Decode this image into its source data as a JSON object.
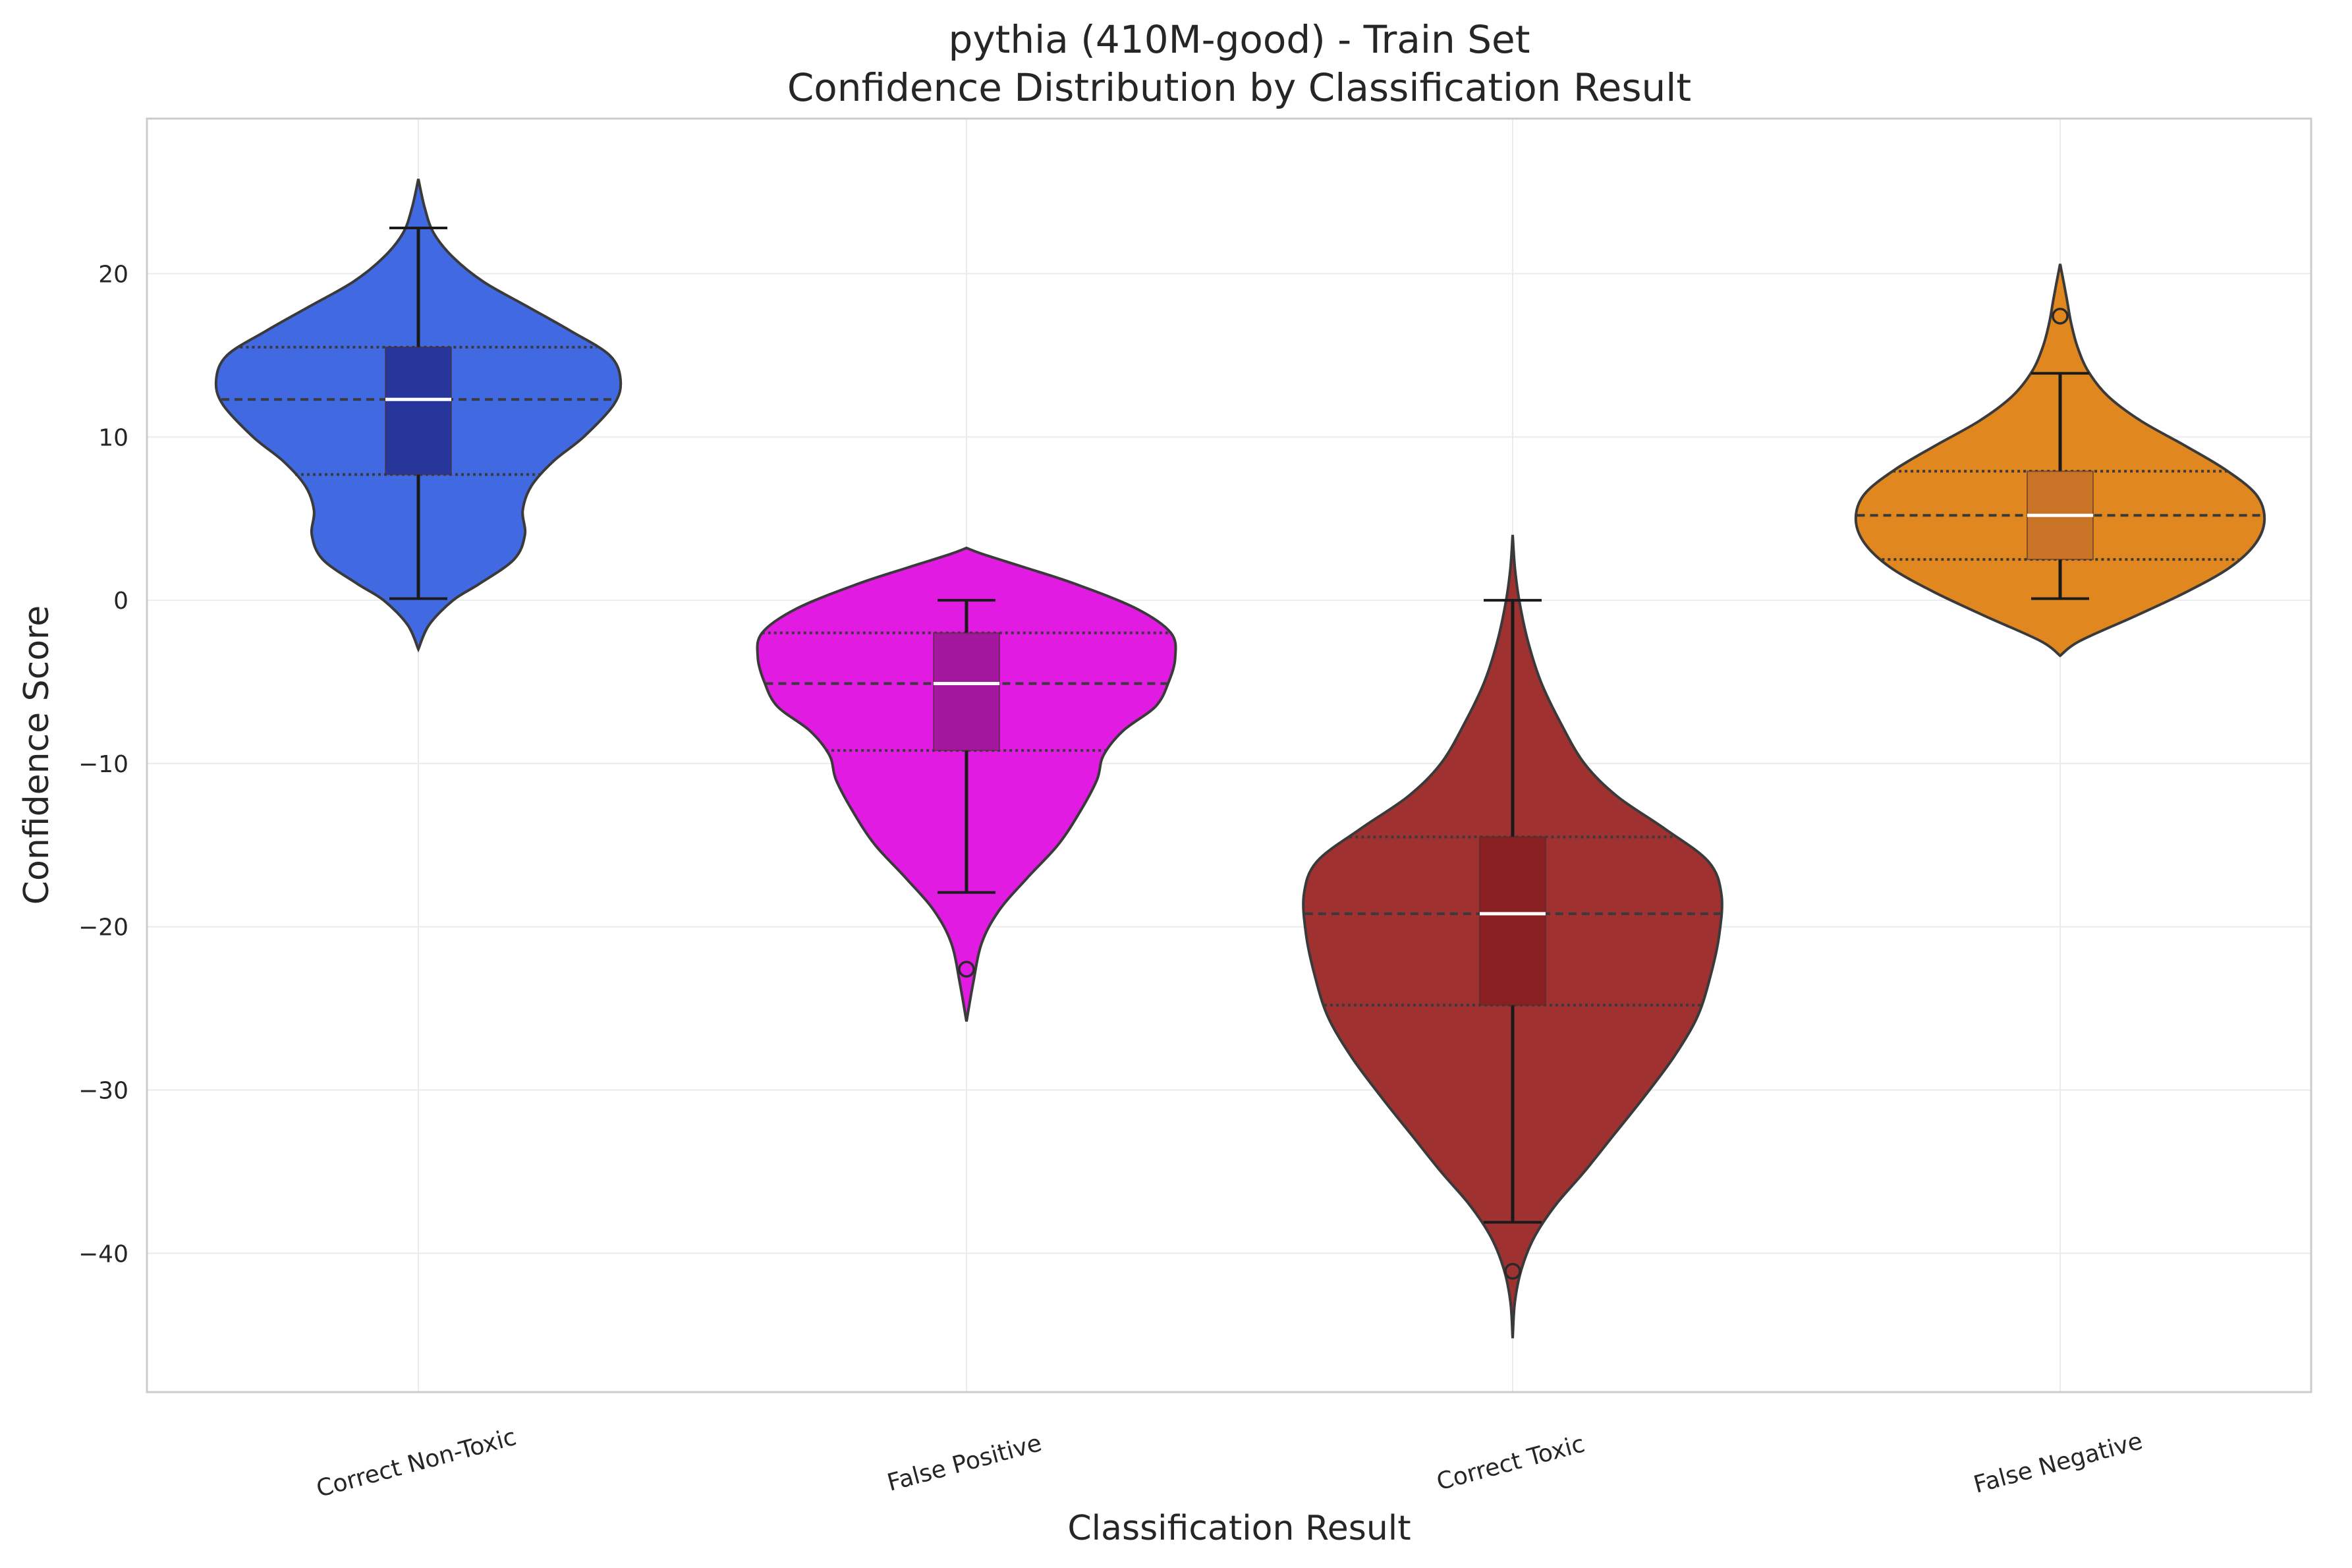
{
  "chart_data": {
    "type": "violin",
    "title": "pythia (410M-good) - Train Set",
    "subtitle": "Confidence Distribution by Classification Result",
    "xlabel": "Classification Result",
    "ylabel": "Confidence Score",
    "ylim": [
      -48.5,
      29.5
    ],
    "yticks": [
      20,
      10,
      0,
      -10,
      -20,
      -30,
      -40
    ],
    "grid": true,
    "categories": [
      "Correct Non-Toxic",
      "False Positive",
      "Correct Toxic",
      "False Negative"
    ],
    "series": [
      {
        "category": "Correct Non-Toxic",
        "color": "#4169e1",
        "box_color": "#28359a",
        "q1": 7.7,
        "median": 12.3,
        "q3": 15.5,
        "whisker_low": 0.1,
        "whisker_high": 22.8,
        "outliers": [],
        "density": [
          [
            -3.0,
            0.0
          ],
          [
            -1.5,
            0.05
          ],
          [
            0.0,
            0.16
          ],
          [
            1.0,
            0.28
          ],
          [
            2.5,
            0.44
          ],
          [
            4.0,
            0.49
          ],
          [
            5.5,
            0.48
          ],
          [
            7.0,
            0.52
          ],
          [
            8.5,
            0.62
          ],
          [
            10.0,
            0.76
          ],
          [
            12.0,
            0.9
          ],
          [
            13.5,
            0.93
          ],
          [
            15.0,
            0.88
          ],
          [
            16.5,
            0.7
          ],
          [
            18.0,
            0.5
          ],
          [
            19.5,
            0.3
          ],
          [
            21.0,
            0.16
          ],
          [
            22.5,
            0.07
          ],
          [
            24.0,
            0.03
          ],
          [
            25.8,
            0.0
          ]
        ]
      },
      {
        "category": "False Positive",
        "color": "#e11be1",
        "box_color": "#a3179f",
        "q1": -9.2,
        "median": -5.1,
        "q3": -2.0,
        "whisker_low": -17.9,
        "whisker_high": 0.0,
        "outliers": [
          -22.6
        ],
        "density": [
          [
            -25.8,
            0.0
          ],
          [
            -23.5,
            0.03
          ],
          [
            -21.0,
            0.07
          ],
          [
            -19.0,
            0.15
          ],
          [
            -17.0,
            0.28
          ],
          [
            -15.0,
            0.42
          ],
          [
            -13.0,
            0.52
          ],
          [
            -11.0,
            0.6
          ],
          [
            -9.5,
            0.63
          ],
          [
            -8.0,
            0.72
          ],
          [
            -6.5,
            0.87
          ],
          [
            -5.0,
            0.93
          ],
          [
            -3.5,
            0.96
          ],
          [
            -2.0,
            0.94
          ],
          [
            -0.5,
            0.78
          ],
          [
            1.0,
            0.5
          ],
          [
            2.0,
            0.27
          ],
          [
            2.8,
            0.08
          ],
          [
            3.2,
            0.0
          ]
        ]
      },
      {
        "category": "Correct Toxic",
        "color": "#a03131",
        "box_color": "#8a1f21",
        "q1": -24.8,
        "median": -19.2,
        "q3": -14.5,
        "whisker_low": -38.1,
        "whisker_high": 0.0,
        "outliers": [
          -41.1
        ],
        "density": [
          [
            -45.2,
            0.0
          ],
          [
            -43.0,
            0.01
          ],
          [
            -41.0,
            0.04
          ],
          [
            -39.0,
            0.1
          ],
          [
            -37.0,
            0.2
          ],
          [
            -35.0,
            0.33
          ],
          [
            -33.0,
            0.45
          ],
          [
            -30.5,
            0.6
          ],
          [
            -28.0,
            0.74
          ],
          [
            -25.5,
            0.85
          ],
          [
            -23.0,
            0.91
          ],
          [
            -20.5,
            0.95
          ],
          [
            -18.0,
            0.96
          ],
          [
            -16.0,
            0.9
          ],
          [
            -14.0,
            0.7
          ],
          [
            -12.0,
            0.48
          ],
          [
            -10.0,
            0.33
          ],
          [
            -7.5,
            0.22
          ],
          [
            -5.0,
            0.13
          ],
          [
            -2.5,
            0.07
          ],
          [
            0.0,
            0.03
          ],
          [
            2.0,
            0.01
          ],
          [
            4.0,
            0.0
          ]
        ]
      },
      {
        "category": "False Negative",
        "color": "#e0881f",
        "box_color": "#c97327",
        "q1": 2.5,
        "median": 5.2,
        "q3": 7.9,
        "whisker_low": 0.1,
        "whisker_high": 13.9,
        "outliers": [
          17.4
        ],
        "density": [
          [
            -3.4,
            0.0
          ],
          [
            -2.5,
            0.09
          ],
          [
            -1.0,
            0.34
          ],
          [
            0.5,
            0.58
          ],
          [
            2.0,
            0.78
          ],
          [
            3.5,
            0.9
          ],
          [
            5.0,
            0.94
          ],
          [
            6.5,
            0.9
          ],
          [
            8.0,
            0.76
          ],
          [
            9.5,
            0.57
          ],
          [
            11.0,
            0.37
          ],
          [
            12.5,
            0.22
          ],
          [
            14.0,
            0.13
          ],
          [
            15.5,
            0.08
          ],
          [
            17.0,
            0.05
          ],
          [
            18.5,
            0.03
          ],
          [
            20.6,
            0.0
          ]
        ]
      }
    ]
  }
}
